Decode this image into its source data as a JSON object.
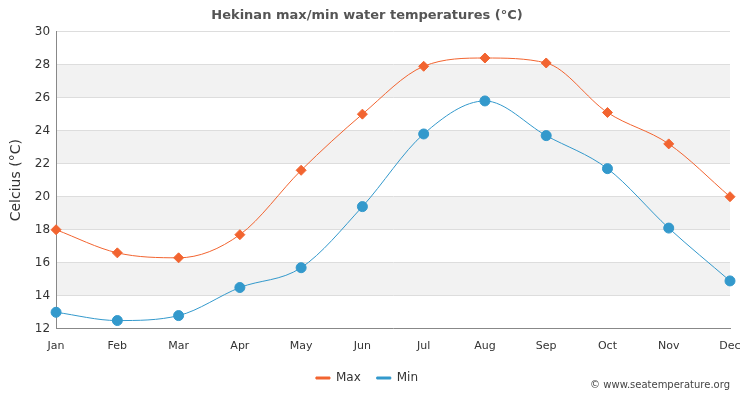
{
  "chart_data": {
    "type": "line",
    "title": "Hekinan max/min water temperatures (°C)",
    "y_label": "Celcius (°C)",
    "annotation": "© www.seatemperature.org",
    "categories": [
      "Jan",
      "Feb",
      "Mar",
      "Apr",
      "May",
      "Jun",
      "Jul",
      "Aug",
      "Sep",
      "Oct",
      "Nov",
      "Dec"
    ],
    "series": [
      {
        "name": "Max",
        "color": "#f26430",
        "marker": "diamond",
        "values": [
          18.0,
          16.6,
          16.3,
          17.7,
          21.6,
          25.0,
          27.9,
          28.4,
          28.1,
          25.1,
          23.2,
          20.0
        ]
      },
      {
        "name": "Min",
        "color": "#3399cc",
        "marker": "circle",
        "values": [
          13.0,
          12.5,
          12.8,
          14.5,
          15.7,
          19.4,
          23.8,
          25.8,
          23.7,
          21.7,
          18.1,
          14.9
        ]
      }
    ],
    "ylim": [
      12,
      30
    ],
    "yticks": [
      12,
      14,
      16,
      18,
      20,
      22,
      24,
      26,
      28,
      30
    ],
    "grid": true,
    "legend": "bottom"
  }
}
